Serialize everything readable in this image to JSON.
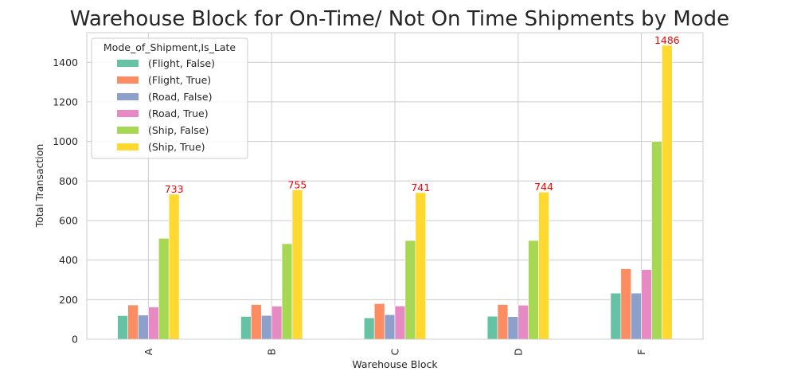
{
  "chart_data": {
    "type": "bar",
    "title": "Warehouse Block for On-Time/ Not On Time Shipments by Mode",
    "xlabel": "Warehouse Block",
    "ylabel": "Total Transaction",
    "categories": [
      "A",
      "B",
      "C",
      "D",
      "F"
    ],
    "ylim": [
      0,
      1550
    ],
    "yticks": [
      0,
      200,
      400,
      600,
      800,
      1000,
      1200,
      1400
    ],
    "grid": true,
    "legend": {
      "title": "Mode_of_Shipment,Is_Late",
      "placement": "top-left"
    },
    "series": [
      {
        "name": "(Flight, False)",
        "color": "#66c2a5",
        "values": [
          119,
          115,
          108,
          116,
          233
        ]
      },
      {
        "name": "(Flight, True)",
        "color": "#fc8d62",
        "values": [
          173,
          175,
          180,
          175,
          356
        ]
      },
      {
        "name": "(Road, False)",
        "color": "#8da0cb",
        "values": [
          122,
          120,
          124,
          114,
          233
        ]
      },
      {
        "name": "(Road, True)",
        "color": "#e78ac3",
        "values": [
          163,
          167,
          168,
          172,
          352
        ]
      },
      {
        "name": "(Ship, False)",
        "color": "#a6d854",
        "values": [
          510,
          483,
          499,
          499,
          1000
        ]
      },
      {
        "name": "(Ship, True)",
        "color": "#ffd92f",
        "values": [
          733,
          755,
          741,
          744,
          1486
        ]
      }
    ],
    "data_labels": {
      "series": "(Ship, True)",
      "color": "#ff0000",
      "values": [
        "733",
        "755",
        "741",
        "744",
        "1486"
      ]
    }
  }
}
